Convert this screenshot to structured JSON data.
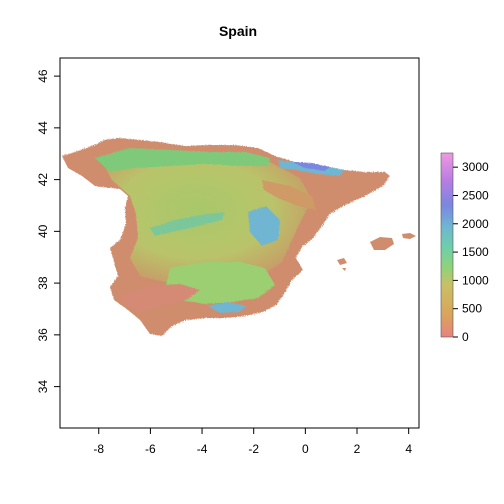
{
  "title": "Spain",
  "map": {
    "x_ticks": [
      "-8",
      "-6",
      "-4",
      "-2",
      "0",
      "2",
      "4"
    ],
    "y_ticks": [
      "34",
      "36",
      "38",
      "40",
      "42",
      "44",
      "46"
    ],
    "x_range": [
      -9.5,
      4.4
    ],
    "y_range": [
      32.4,
      46.7
    ]
  },
  "legend": {
    "ticks": [
      "0",
      "500",
      "1000",
      "1500",
      "2000",
      "2500",
      "3000"
    ],
    "range": [
      0,
      3250
    ],
    "colors": [
      "#e8827f",
      "#d9a45c",
      "#c9c066",
      "#8fd27a",
      "#6fd0a6",
      "#6fb6d2",
      "#7a86e0",
      "#b77de2",
      "#f099e0"
    ]
  }
}
